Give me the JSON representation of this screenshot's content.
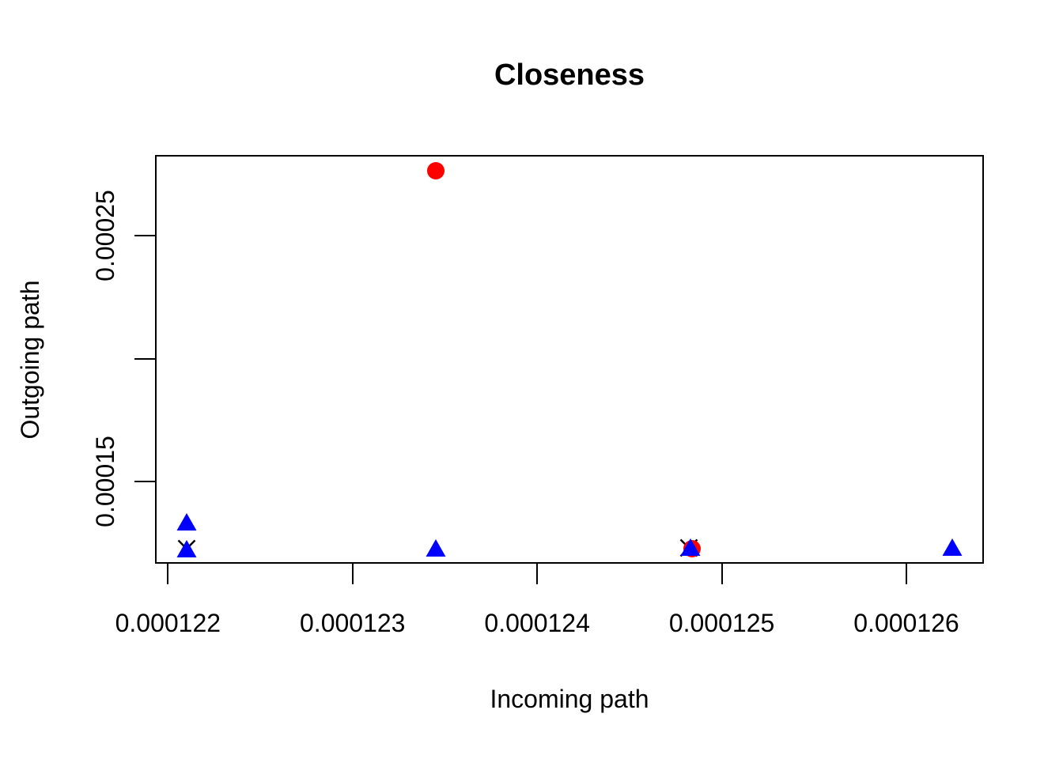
{
  "figure": {
    "background": "#ffffff",
    "frame_color": "#000000"
  },
  "chart_data": {
    "type": "scatter",
    "title": "Closeness",
    "xlabel": "Incoming path",
    "ylabel": "Outgoing path",
    "xlim": [
      0.00012193,
      0.00012642
    ],
    "ylim": [
      0.00011656,
      0.0002828
    ],
    "grid": false,
    "legend": "none",
    "x_ticks": {
      "values": [
        0.000122,
        0.000123,
        0.000124,
        0.000125,
        0.000126
      ],
      "labels": [
        "0.000122",
        "0.000123",
        "0.000124",
        "0.000125",
        "0.000126"
      ]
    },
    "y_ticks": {
      "values": [
        0.00015,
        0.0002,
        0.00025
      ],
      "labels": [
        "0.00015",
        "",
        "0.00025"
      ]
    },
    "series": [
      {
        "name": "x-cross-points",
        "marker": "x",
        "color": "#000000",
        "size": 25,
        "points": [
          {
            "x": 0.0001221,
            "y": 0.0001227
          },
          {
            "x": 0.00012482,
            "y": 0.000123
          }
        ]
      },
      {
        "name": "red-circle-points",
        "marker": "circle",
        "color": "#ff0000",
        "size": 22,
        "points": [
          {
            "x": 0.00012345,
            "y": 0.0002764
          },
          {
            "x": 0.00012484,
            "y": 0.0001228
          }
        ]
      },
      {
        "name": "blue-triangle-points",
        "marker": "triangle",
        "color": "#0000ff",
        "size": 25,
        "points": [
          {
            "x": 0.0001221,
            "y": 0.0001336
          },
          {
            "x": 0.0001221,
            "y": 0.0001228
          },
          {
            "x": 0.00012345,
            "y": 0.0001231
          },
          {
            "x": 0.00012483,
            "y": 0.0001232
          },
          {
            "x": 0.00012625,
            "y": 0.0001233
          }
        ]
      }
    ]
  }
}
